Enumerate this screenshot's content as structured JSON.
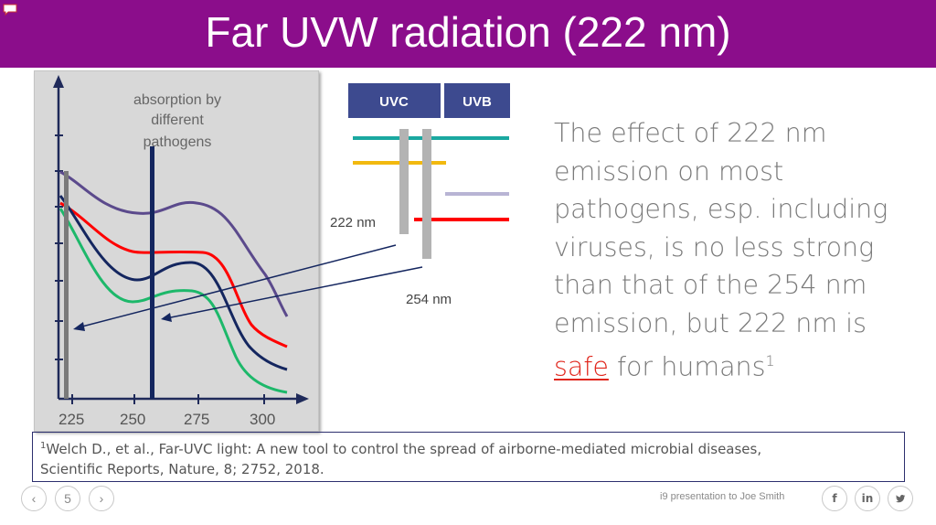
{
  "slide": {
    "title": "Far UVW radiation (222 nm)",
    "current_page": "5"
  },
  "chart": {
    "annotation_line1": "absorption by",
    "annotation_line2": "different",
    "annotation_line3": "pathogens",
    "x_tick_labels": [
      "225",
      "250",
      "275",
      "300"
    ]
  },
  "spectrum": {
    "band_uvc": "UVC",
    "band_uvb": "UVB",
    "label_222": "222 nm",
    "label_254": "254 nm"
  },
  "statement": {
    "line1": "The effect of 222 nm",
    "line2": "emission on most",
    "line3": "pathogens, esp. including",
    "line4": "viruses, is no less strong",
    "line5": "than that of the 254 nm",
    "line6": "emission, but 222 nm is",
    "line7_highlight": "safe",
    "line7_rest": " for humans",
    "footnote_marker": "1"
  },
  "footnote": {
    "marker": "1",
    "line1": "Welch D., et al., Far-UVC light: A new tool to control the spread of airborne-mediated microbial diseases,",
    "line2": "Scientific Reports, Nature, 8; 2752, 2018."
  },
  "footer": {
    "prev_icon": "‹",
    "next_icon": "›",
    "presenter_text": "i9 presentation to Joe Smith",
    "social_facebook": "f",
    "social_linkedin": "in",
    "social_twitter": "🐦"
  },
  "colors": {
    "title_bar": "#8b0d8b",
    "curve_purple": "#5b4a8c",
    "curve_red": "#ff0000",
    "curve_navy": "#14265f",
    "curve_green": "#1db86a",
    "band_header": "#3d4a8f",
    "line_teal": "#1aa8a0",
    "line_yellow": "#f2b90f",
    "line_lavender": "#b8b4d4",
    "highlight_red": "#e0251b"
  }
}
